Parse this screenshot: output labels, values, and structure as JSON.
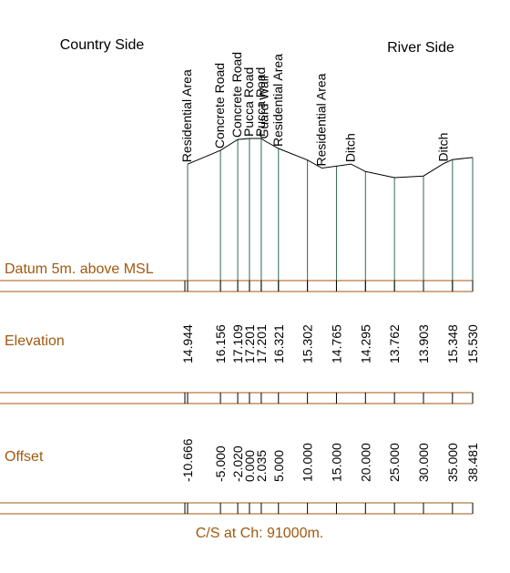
{
  "colors": {
    "brown": "#a0590f",
    "ground_line": "#000000",
    "vertical_line": "#2f6b4a",
    "frame_line": "#a0590f"
  },
  "header": {
    "left_label": "Country Side",
    "right_label": "River Side"
  },
  "rows": {
    "datum": "Datum 5m. above MSL",
    "elevation": "Elevation",
    "offset": "Offset"
  },
  "footer": {
    "caption": "C/S at Ch: 91000m."
  },
  "chart_data": {
    "type": "cross-section",
    "datum_elevation": 5,
    "points": [
      {
        "offset": -10.666,
        "offset_label": "-10.666",
        "elevation": 14.944,
        "elevation_label": "14.944",
        "feature": "Residential Area"
      },
      {
        "offset": -5.0,
        "offset_label": "-5.000",
        "elevation": 16.156,
        "elevation_label": "16.156",
        "feature": "Concrete Road"
      },
      {
        "offset": -2.02,
        "offset_label": "-2.020",
        "elevation": 17.109,
        "elevation_label": "17.109",
        "feature": "Concrete Road"
      },
      {
        "offset": 0.0,
        "offset_label": "0.000",
        "elevation": 17.201,
        "elevation_label": "17.201",
        "feature": "Pucca Road"
      },
      {
        "offset": 2.035,
        "offset_label": "2.035",
        "elevation": 17.201,
        "elevation_label": "17.201",
        "feature": "Pucca Road"
      },
      {
        "offset": 2.6,
        "offset_label": "",
        "elevation": 17.0,
        "elevation_label": "",
        "feature": "Guard Wall"
      },
      {
        "offset": 5.0,
        "offset_label": "5.000",
        "elevation": 16.321,
        "elevation_label": "16.321",
        "feature": "Residential Area"
      },
      {
        "offset": 10.0,
        "offset_label": "10.000",
        "elevation": 15.302,
        "elevation_label": "15.302",
        "feature": ""
      },
      {
        "offset": 12.5,
        "offset_label": "",
        "elevation": 14.6,
        "elevation_label": "",
        "feature": "Residential Area"
      },
      {
        "offset": 15.0,
        "offset_label": "15.000",
        "elevation": 14.765,
        "elevation_label": "14.765",
        "feature": ""
      },
      {
        "offset": 17.5,
        "offset_label": "",
        "elevation": 14.95,
        "elevation_label": "",
        "feature": "Ditch"
      },
      {
        "offset": 20.0,
        "offset_label": "20.000",
        "elevation": 14.295,
        "elevation_label": "14.295",
        "feature": ""
      },
      {
        "offset": 25.0,
        "offset_label": "25.000",
        "elevation": 13.762,
        "elevation_label": "13.762",
        "feature": ""
      },
      {
        "offset": 30.0,
        "offset_label": "30.000",
        "elevation": 13.903,
        "elevation_label": "13.903",
        "feature": ""
      },
      {
        "offset": 33.5,
        "offset_label": "",
        "elevation": 15.0,
        "elevation_label": "",
        "feature": "Ditch"
      },
      {
        "offset": 35.0,
        "offset_label": "35.000",
        "elevation": 15.348,
        "elevation_label": "15.348",
        "feature": ""
      },
      {
        "offset": 38.481,
        "offset_label": "38.481",
        "elevation": 15.53,
        "elevation_label": "15.530",
        "feature": ""
      }
    ]
  }
}
